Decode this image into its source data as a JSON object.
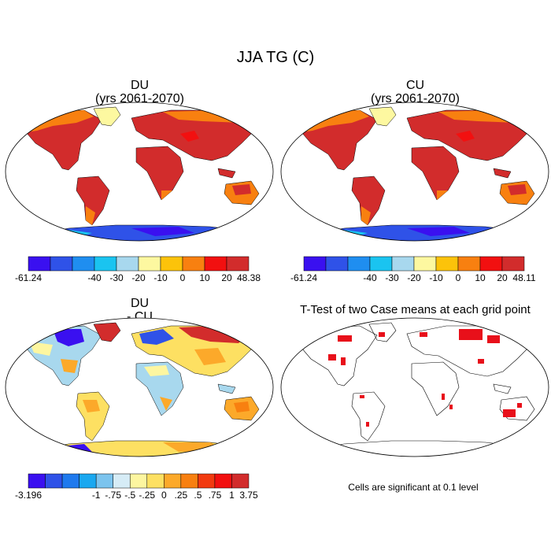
{
  "main_title": "JJA TG (C)",
  "panels": [
    {
      "id": "du",
      "title_line1": "DU",
      "title_line2": "(yrs 2061-2070)"
    },
    {
      "id": "cu",
      "title_line1": "CU",
      "title_line2": "(yrs 2061-2070)"
    },
    {
      "id": "diff",
      "title_line1": "DU",
      "title_line2": "- CU"
    },
    {
      "id": "ttest",
      "title_line1": "T-Test of two Case means at each grid point",
      "title_line2": ""
    }
  ],
  "colorbars": [
    {
      "id": "du",
      "colors": [
        "#3a10f0",
        "#2f52e8",
        "#1f8ef0",
        "#1ac4f0",
        "#a8d8ee",
        "#fdf8a0",
        "#fcc30a",
        "#f88010",
        "#f21010",
        "#d22c2c"
      ],
      "labels": [
        "-61.24",
        "-40",
        "-30",
        "-20",
        "-10",
        "0",
        "10",
        "20",
        "48.38"
      ]
    },
    {
      "id": "cu",
      "colors": [
        "#3a10f0",
        "#2f52e8",
        "#1f8ef0",
        "#1ac4f0",
        "#a8d8ee",
        "#fdf8a0",
        "#fcc30a",
        "#f88010",
        "#f21010",
        "#d22c2c"
      ],
      "labels": [
        "-61.24",
        "-40",
        "-30",
        "-20",
        "-10",
        "0",
        "10",
        "20",
        "48.11"
      ]
    },
    {
      "id": "diff",
      "colors": [
        "#3a10f0",
        "#2f52e8",
        "#1f7aee",
        "#1aa8f0",
        "#7cc4ee",
        "#d6ecf6",
        "#fdf6a0",
        "#fde062",
        "#fca92a",
        "#f88010",
        "#f23a10",
        "#f21010",
        "#d22c2c"
      ],
      "labels": [
        "-3.196",
        "-1",
        "-.75",
        "-.5",
        "-.25",
        "0",
        ".25",
        ".5",
        ".75",
        "1",
        "3.75"
      ]
    }
  ],
  "significance_note": "Cells are significant at 0.1 level",
  "colors": {
    "ocean": "#ffffff",
    "hot": "#d22c2c",
    "warm": "#f88010",
    "mild": "#fcc30a",
    "cold": "#2f52e8",
    "significant": "#e8101a"
  }
}
